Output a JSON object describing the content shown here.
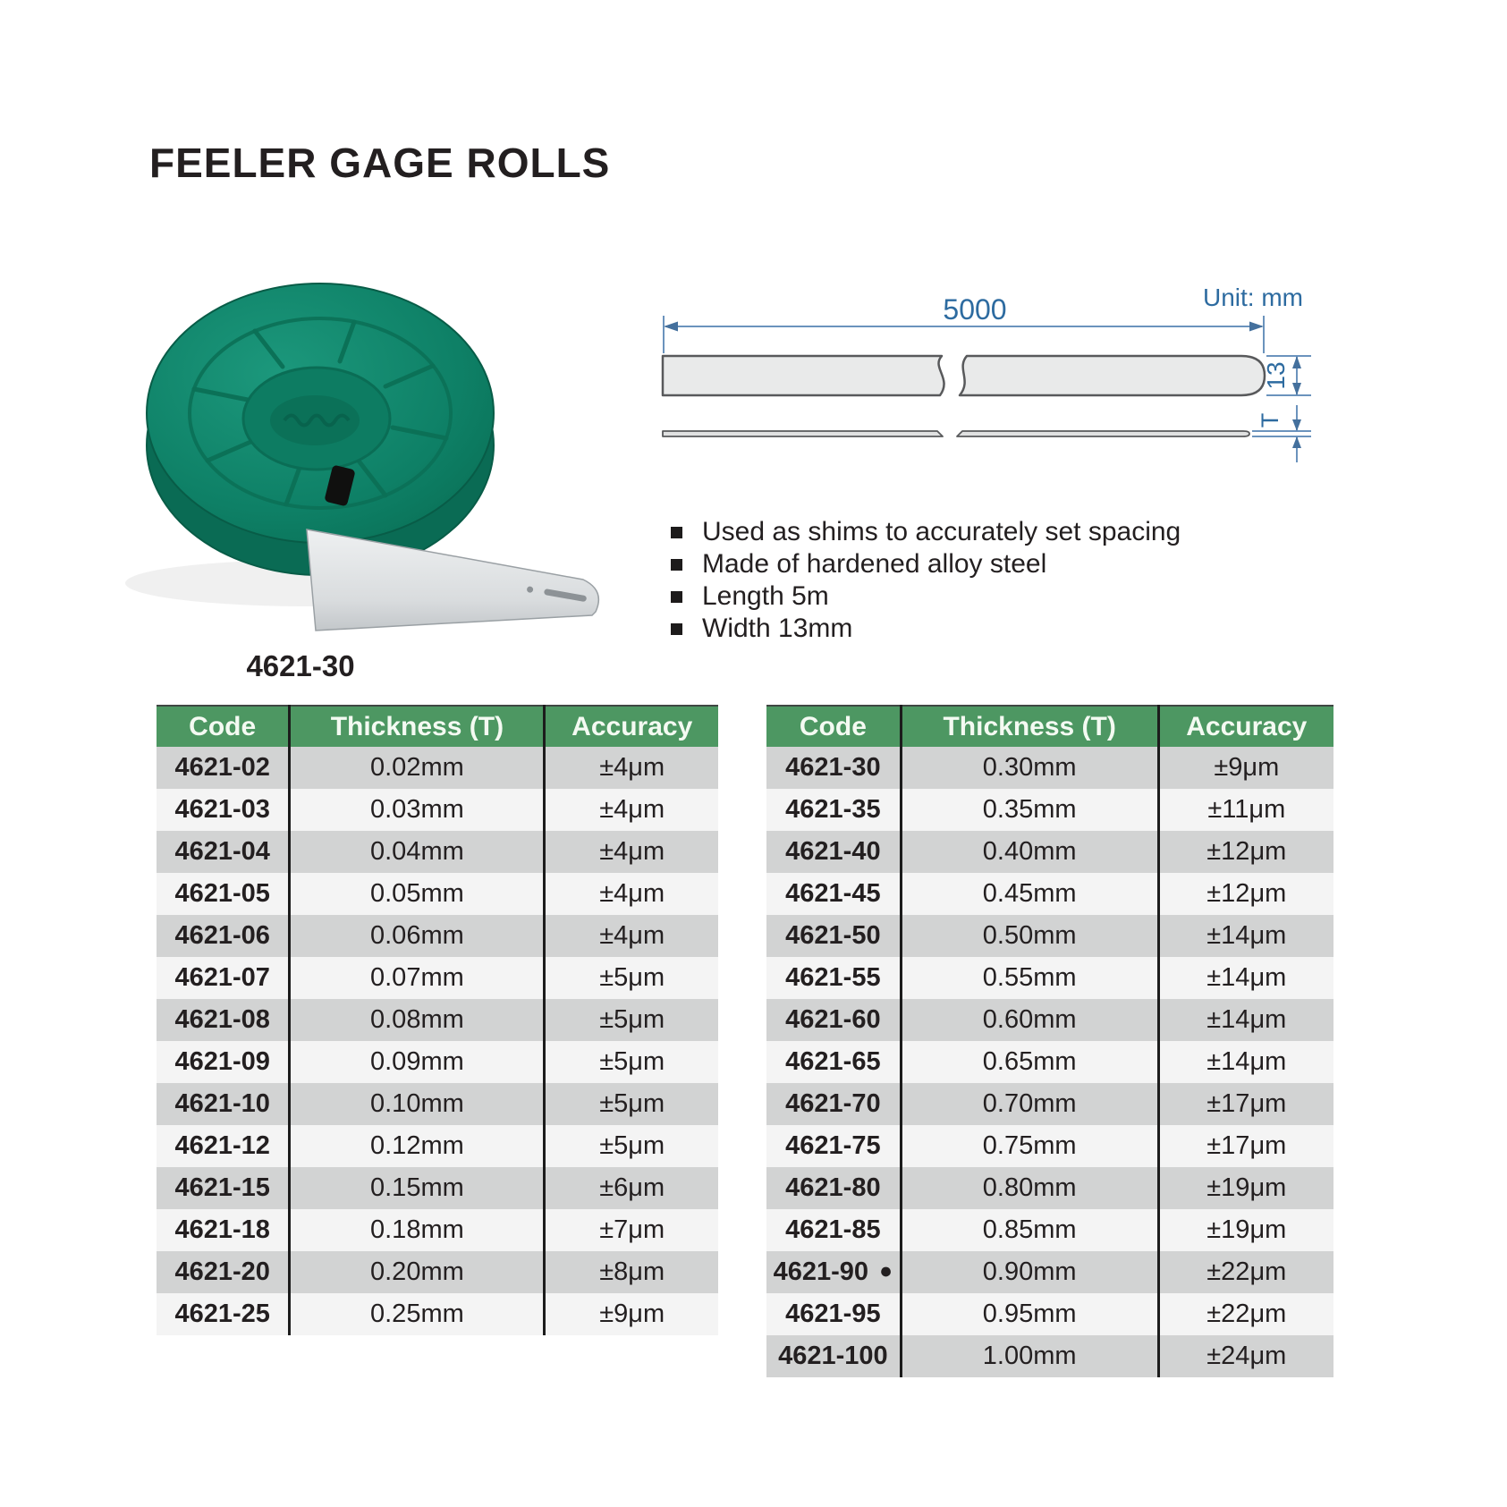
{
  "page": {
    "title": "FEELER GAGE ROLLS"
  },
  "product": {
    "caption": "4621-30"
  },
  "diagram": {
    "unit_label": "Unit: mm",
    "length_label": "5000",
    "width_label": "13",
    "thickness_label": "T"
  },
  "features": [
    "Used as shims to accurately set spacing",
    "Made of hardened alloy steel",
    "Length 5m",
    "Width 13mm"
  ],
  "tables": {
    "headers": [
      "Code",
      "Thickness (T)",
      "Accuracy"
    ],
    "left": {
      "rows": [
        {
          "code": "4621-02",
          "thickness": "0.02mm",
          "accuracy": "±4μm"
        },
        {
          "code": "4621-03",
          "thickness": "0.03mm",
          "accuracy": "±4μm"
        },
        {
          "code": "4621-04",
          "thickness": "0.04mm",
          "accuracy": "±4μm"
        },
        {
          "code": "4621-05",
          "thickness": "0.05mm",
          "accuracy": "±4μm"
        },
        {
          "code": "4621-06",
          "thickness": "0.06mm",
          "accuracy": "±4μm"
        },
        {
          "code": "4621-07",
          "thickness": "0.07mm",
          "accuracy": "±5μm"
        },
        {
          "code": "4621-08",
          "thickness": "0.08mm",
          "accuracy": "±5μm"
        },
        {
          "code": "4621-09",
          "thickness": "0.09mm",
          "accuracy": "±5μm"
        },
        {
          "code": "4621-10",
          "thickness": "0.10mm",
          "accuracy": "±5μm"
        },
        {
          "code": "4621-12",
          "thickness": "0.12mm",
          "accuracy": "±5μm"
        },
        {
          "code": "4621-15",
          "thickness": "0.15mm",
          "accuracy": "±6μm"
        },
        {
          "code": "4621-18",
          "thickness": "0.18mm",
          "accuracy": "±7μm"
        },
        {
          "code": "4621-20",
          "thickness": "0.20mm",
          "accuracy": "±8μm"
        },
        {
          "code": "4621-25",
          "thickness": "0.25mm",
          "accuracy": "±9μm"
        }
      ]
    },
    "right": {
      "rows": [
        {
          "code": "4621-30",
          "thickness": "0.30mm",
          "accuracy": "±9μm"
        },
        {
          "code": "4621-35",
          "thickness": "0.35mm",
          "accuracy": "±11μm"
        },
        {
          "code": "4621-40",
          "thickness": "0.40mm",
          "accuracy": "±12μm"
        },
        {
          "code": "4621-45",
          "thickness": "0.45mm",
          "accuracy": "±12μm"
        },
        {
          "code": "4621-50",
          "thickness": "0.50mm",
          "accuracy": "±14μm"
        },
        {
          "code": "4621-55",
          "thickness": "0.55mm",
          "accuracy": "±14μm"
        },
        {
          "code": "4621-60",
          "thickness": "0.60mm",
          "accuracy": "±14μm"
        },
        {
          "code": "4621-65",
          "thickness": "0.65mm",
          "accuracy": "±14μm"
        },
        {
          "code": "4621-70",
          "thickness": "0.70mm",
          "accuracy": "±17μm"
        },
        {
          "code": "4621-75",
          "thickness": "0.75mm",
          "accuracy": "±17μm"
        },
        {
          "code": "4621-80",
          "thickness": "0.80mm",
          "accuracy": "±19μm"
        },
        {
          "code": "4621-85",
          "thickness": "0.85mm",
          "accuracy": "±19μm"
        },
        {
          "code": "4621-90",
          "mark": "●",
          "thickness": "0.90mm",
          "accuracy": "±22μm"
        },
        {
          "code": "4621-95",
          "thickness": "0.95mm",
          "accuracy": "±22μm"
        },
        {
          "code": "4621-100",
          "thickness": "1.00mm",
          "accuracy": "±24μm"
        }
      ]
    }
  },
  "colors": {
    "header_green": "#4d9762",
    "row_dark": "#d2d3d3",
    "row_light": "#f4f4f4",
    "ink": "#231f20",
    "diagram_blue": "#2d6ba0",
    "dim_line_blue": "#6b93bd",
    "disc_green": "#0e8066"
  }
}
